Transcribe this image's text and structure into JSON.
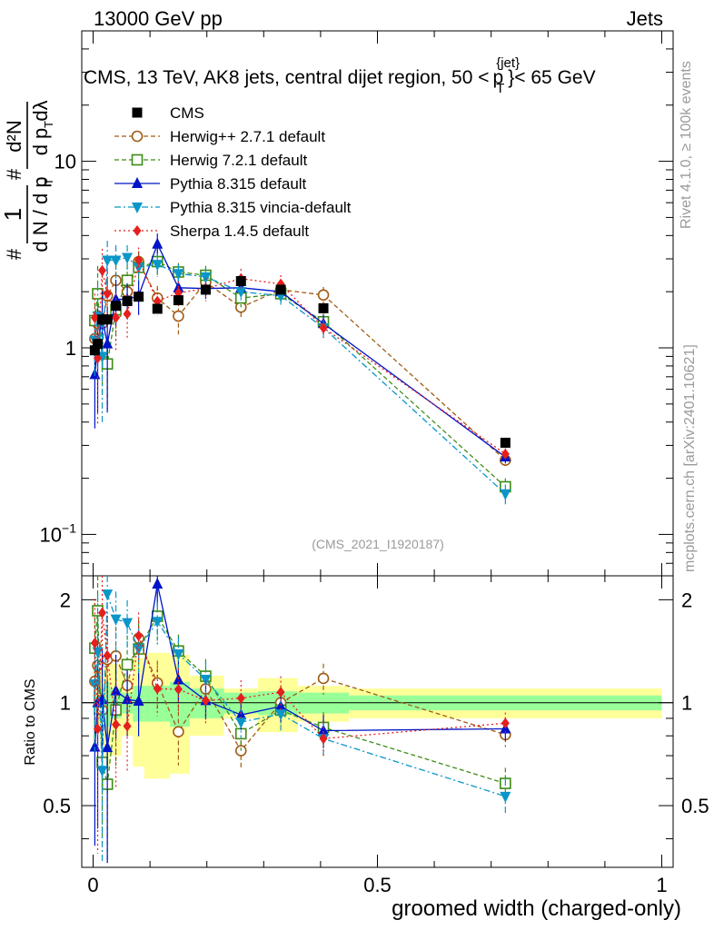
{
  "header": {
    "left": "13000 GeV pp",
    "right": "Jets"
  },
  "side": {
    "rivet": "Rivet 4.1.0, ≥ 100k events",
    "mcplots": "mcplots.cern.ch [arXiv:2401.10621]"
  },
  "watermark": "(CMS_2021_I1920187)",
  "ylabel_main_text": "1/N dN/dp_T d²N/dp_T dλ",
  "ylabel_ratio": "Ratio to CMS",
  "chart_data": {
    "type": "line",
    "title": "CMS, 13 TeV, AK8 jets, central dijet region, 50 < p_T^{jet} < 65 GeV",
    "title_parts": {
      "pre": "CMS, 13 TeV, AK8 jets, central dijet region, 50 <",
      "p": "p",
      "sub": "T",
      "sup": "{jet}",
      "post": "}< 65 GeV"
    },
    "xlabel": "groomed width (charged-only)",
    "xlim": [
      -0.02,
      1.02
    ],
    "main_ylim": [
      0.06,
      50
    ],
    "ratio_ylim": [
      0.33,
      2.35
    ],
    "x_ticks": [
      0,
      0.5,
      1
    ],
    "x_tick_labels": [
      "0",
      "0.5",
      "1"
    ],
    "main_ticks": [
      {
        "v": 0.1,
        "b": "10",
        "e": "−1"
      },
      {
        "v": 1,
        "b": "1",
        "e": ""
      },
      {
        "v": 10,
        "b": "10",
        "e": ""
      }
    ],
    "ratio_ticks": [
      {
        "v": 0.5,
        "t": "0.5"
      },
      {
        "v": 1,
        "t": "1"
      },
      {
        "v": 2,
        "t": "2"
      }
    ],
    "x": [
      0.003,
      0.008,
      0.016,
      0.025,
      0.04,
      0.06,
      0.08,
      0.113,
      0.15,
      0.198,
      0.26,
      0.33,
      0.405,
      0.725
    ],
    "bins": [
      0,
      0.005,
      0.011,
      0.02,
      0.03,
      0.05,
      0.07,
      0.09,
      0.135,
      0.17,
      0.23,
      0.29,
      0.36,
      0.45,
      1.0
    ],
    "bands_inner": [
      0.08,
      0.05,
      0.1,
      0.15,
      0.1,
      0.07,
      0.12,
      0.12,
      0.15,
      0.1,
      0.07,
      0.08,
      0.07,
      0.05
    ],
    "bands_outer": [
      0.25,
      0.15,
      0.25,
      0.35,
      0.3,
      0.2,
      0.35,
      0.4,
      0.38,
      0.2,
      0.1,
      0.18,
      0.12,
      0.1
    ],
    "data": {
      "name": "CMS",
      "values": [
        0.97,
        1.05,
        1.42,
        1.42,
        1.68,
        1.78,
        1.88,
        1.62,
        1.8,
        2.05,
        2.28,
        2.05,
        1.63,
        0.31
      ],
      "errors": [
        0.05,
        0.05,
        0.1,
        0.1,
        0.08,
        0.06,
        0.06,
        0.06,
        0.06,
        0.06,
        0.06,
        0.06,
        0.05,
        0.01
      ]
    },
    "series": [
      {
        "name": "Herwig++ 2.7.1 default",
        "color": "#a05a14",
        "marker": "circle-open",
        "dash": "5,3",
        "values": [
          1.12,
          1.35,
          1.35,
          1.9,
          2.3,
          2.0,
          2.9,
          1.85,
          1.48,
          2.25,
          1.65,
          2.05,
          1.92,
          0.25
        ],
        "errors": [
          0.3,
          0.4,
          0.5,
          0.5,
          0.5,
          0.4,
          0.4,
          0.3,
          0.3,
          0.25,
          0.2,
          0.25,
          0.2,
          0.02
        ]
      },
      {
        "name": "Herwig 7.2.1 default",
        "color": "#3c8c14",
        "marker": "square-open",
        "dash": "5,3",
        "values": [
          1.4,
          1.95,
          0.95,
          0.82,
          1.6,
          2.3,
          2.7,
          2.9,
          2.55,
          2.45,
          1.85,
          1.95,
          1.38,
          0.18
        ],
        "errors": [
          0.5,
          0.8,
          0.4,
          0.35,
          0.5,
          0.5,
          0.5,
          0.5,
          0.3,
          0.3,
          0.2,
          0.2,
          0.15,
          0.02
        ]
      },
      {
        "name": "Pythia 8.315 default",
        "color": "#0014c8",
        "marker": "triangle-up",
        "dash": "",
        "values": [
          0.72,
          1.05,
          1.45,
          1.05,
          1.82,
          1.82,
          1.9,
          3.6,
          2.1,
          2.08,
          2.1,
          2.0,
          1.35,
          0.26
        ],
        "errors": [
          0.35,
          0.6,
          0.6,
          0.6,
          0.5,
          0.4,
          0.4,
          0.5,
          0.3,
          0.25,
          0.2,
          0.2,
          0.15,
          0.02
        ]
      },
      {
        "name": "Pythia 8.315 vincia-default",
        "color": "#0a96c8",
        "marker": "triangle-down",
        "dash": "7,3,2,3",
        "values": [
          1.1,
          1.48,
          0.9,
          2.95,
          2.95,
          3.05,
          2.7,
          2.8,
          2.5,
          2.4,
          2.0,
          1.9,
          1.28,
          0.165
        ],
        "errors": [
          0.4,
          0.7,
          0.5,
          0.8,
          0.6,
          0.5,
          0.4,
          0.4,
          0.3,
          0.3,
          0.2,
          0.2,
          0.15,
          0.02
        ]
      },
      {
        "name": "Sherpa 1.4.5 default",
        "color": "#e61e1e",
        "marker": "diamond",
        "dash": "2,3",
        "values": [
          1.45,
          0.88,
          2.6,
          1.95,
          1.45,
          1.52,
          2.95,
          1.78,
          1.97,
          2.08,
          2.35,
          2.2,
          1.28,
          0.27
        ],
        "errors": [
          0.5,
          0.5,
          0.8,
          0.6,
          0.5,
          0.4,
          0.5,
          0.3,
          0.3,
          0.3,
          0.3,
          0.25,
          0.15,
          0.02
        ]
      }
    ]
  }
}
